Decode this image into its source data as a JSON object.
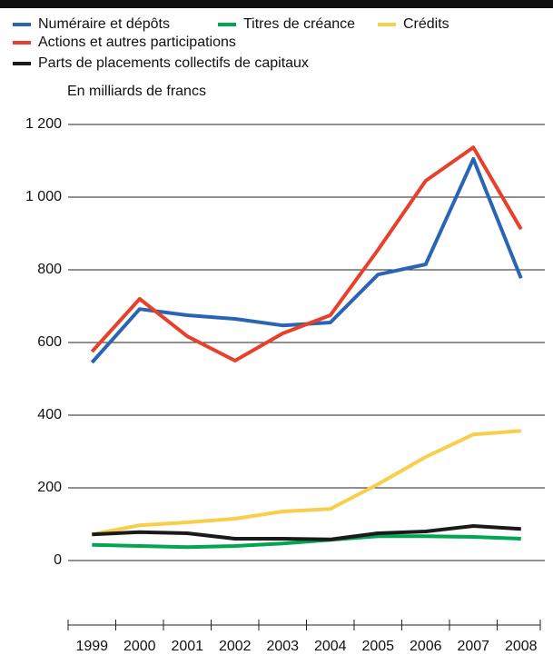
{
  "chart_data": {
    "type": "line",
    "y_label": "En milliards de francs",
    "categories": [
      "1999",
      "2000",
      "2001",
      "2002",
      "2003",
      "2004",
      "2005",
      "2006",
      "2007",
      "2008"
    ],
    "series": [
      {
        "name": "Numéraire et dépôts",
        "color": "#2a64b5",
        "values": [
          545,
          692,
          675,
          665,
          647,
          655,
          787,
          815,
          1105,
          777
        ]
      },
      {
        "name": "Titres de créance",
        "color": "#00a651",
        "values": [
          43,
          40,
          37,
          40,
          47,
          57,
          67,
          67,
          65,
          60
        ]
      },
      {
        "name": "Crédits",
        "color": "#f7cf4a",
        "values": [
          72,
          97,
          105,
          115,
          135,
          142,
          210,
          285,
          347,
          357
        ]
      },
      {
        "name": "Actions et autres participations",
        "color": "#e8402a",
        "values": [
          575,
          720,
          617,
          550,
          625,
          675,
          855,
          1045,
          1137,
          912
        ]
      },
      {
        "name": "Parts de placements collectifs de capitaux",
        "color": "#1a1a1a",
        "values": [
          72,
          78,
          75,
          60,
          60,
          58,
          75,
          80,
          95,
          87
        ]
      }
    ],
    "ylim": [
      -177.5,
      1242.5
    ],
    "yticks": [
      0,
      200,
      400,
      600,
      800,
      {
        "value": 1000,
        "label": "1 000"
      },
      {
        "value": 1200,
        "label": "1 200"
      }
    ],
    "grid": true
  }
}
